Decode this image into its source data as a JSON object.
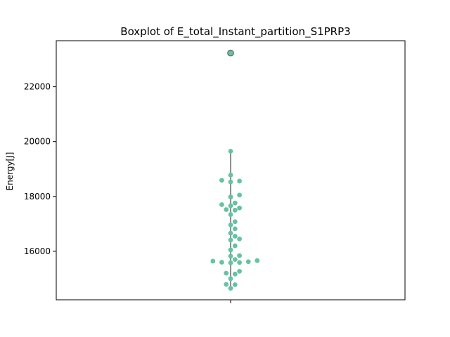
{
  "chart_data": {
    "type": "box",
    "title": "Boxplot of E_total_Instant_partition_S1PRP3",
    "xlabel": "",
    "ylabel": "Energy[J]",
    "ylim": [
      14230,
      23680
    ],
    "yticks": [
      16000,
      18000,
      20000,
      22000
    ],
    "ytick_labels": [
      "16000",
      "18000",
      "20000",
      "22000"
    ],
    "box": {
      "whisker_low": 14650,
      "q1": 15600,
      "median": 16450,
      "q3": 17720,
      "whisker_high": 19650,
      "outliers": [
        23230
      ]
    },
    "points": [
      14650,
      14780,
      14790,
      15000,
      15170,
      15200,
      15270,
      15580,
      15590,
      15600,
      15620,
      15640,
      15660,
      15700,
      15820,
      15840,
      16050,
      16200,
      16410,
      16450,
      16550,
      16660,
      16820,
      16960,
      17080,
      17340,
      17500,
      17520,
      17580,
      17660,
      17700,
      17760,
      17980,
      18050,
      18530,
      18560,
      18590,
      18780,
      19650,
      23230
    ],
    "grid": false,
    "colors": {
      "points": "#66c2a5",
      "whisker": "#555555",
      "outlier": "#66c2a5"
    }
  }
}
